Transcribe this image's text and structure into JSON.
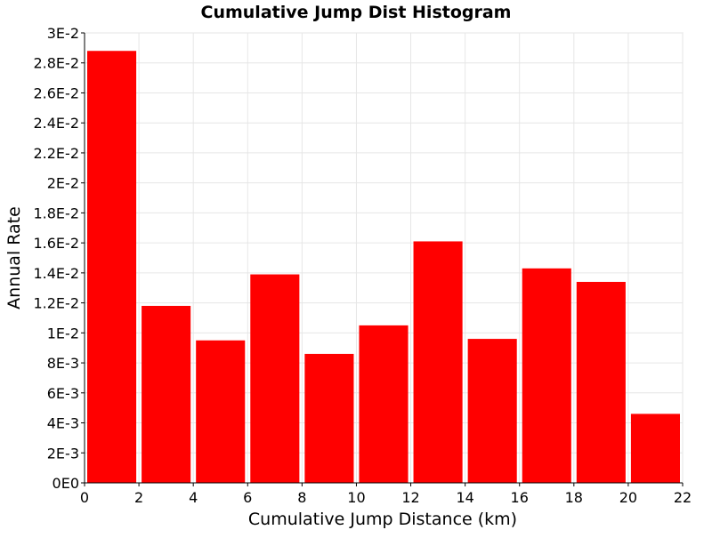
{
  "chart_data": {
    "type": "bar",
    "title": "Cumulative Jump Dist Histogram",
    "xlabel": "Cumulative Jump Distance (km)",
    "ylabel": "Annual Rate",
    "bin_width": 2,
    "bins": [
      {
        "x_start": 0,
        "x_end": 2,
        "value": 0.0288
      },
      {
        "x_start": 2,
        "x_end": 4,
        "value": 0.0118
      },
      {
        "x_start": 4,
        "x_end": 6,
        "value": 0.0095
      },
      {
        "x_start": 6,
        "x_end": 8,
        "value": 0.0139
      },
      {
        "x_start": 8,
        "x_end": 10,
        "value": 0.0086
      },
      {
        "x_start": 10,
        "x_end": 12,
        "value": 0.0105
      },
      {
        "x_start": 12,
        "x_end": 14,
        "value": 0.0161
      },
      {
        "x_start": 14,
        "x_end": 16,
        "value": 0.0096
      },
      {
        "x_start": 16,
        "x_end": 18,
        "value": 0.0143
      },
      {
        "x_start": 18,
        "x_end": 20,
        "value": 0.0134
      },
      {
        "x_start": 20,
        "x_end": 22,
        "value": 0.0046
      }
    ],
    "xlim": [
      0,
      22
    ],
    "ylim": [
      0,
      0.03
    ],
    "x_ticks": [
      {
        "value": 0,
        "label": "0"
      },
      {
        "value": 2,
        "label": "2"
      },
      {
        "value": 4,
        "label": "4"
      },
      {
        "value": 6,
        "label": "6"
      },
      {
        "value": 8,
        "label": "8"
      },
      {
        "value": 10,
        "label": "10"
      },
      {
        "value": 12,
        "label": "12"
      },
      {
        "value": 14,
        "label": "14"
      },
      {
        "value": 16,
        "label": "16"
      },
      {
        "value": 18,
        "label": "18"
      },
      {
        "value": 20,
        "label": "20"
      },
      {
        "value": 22,
        "label": "22"
      }
    ],
    "y_ticks": [
      {
        "value": 0,
        "label": "0E0"
      },
      {
        "value": 0.002,
        "label": "2E-3"
      },
      {
        "value": 0.004,
        "label": "4E-3"
      },
      {
        "value": 0.006,
        "label": "6E-3"
      },
      {
        "value": 0.008,
        "label": "8E-3"
      },
      {
        "value": 0.01,
        "label": "1E-2"
      },
      {
        "value": 0.012,
        "label": "1.2E-2"
      },
      {
        "value": 0.014,
        "label": "1.4E-2"
      },
      {
        "value": 0.016,
        "label": "1.6E-2"
      },
      {
        "value": 0.018,
        "label": "1.8E-2"
      },
      {
        "value": 0.02,
        "label": "2E-2"
      },
      {
        "value": 0.022,
        "label": "2.2E-2"
      },
      {
        "value": 0.024,
        "label": "2.4E-2"
      },
      {
        "value": 0.026,
        "label": "2.6E-2"
      },
      {
        "value": 0.028,
        "label": "2.8E-2"
      },
      {
        "value": 0.03,
        "label": "3E-2"
      }
    ],
    "grid": true,
    "legend": "none",
    "colors": {
      "bar": "#ff0000",
      "grid": "#e6e6e6",
      "background": "#ffffff"
    }
  }
}
